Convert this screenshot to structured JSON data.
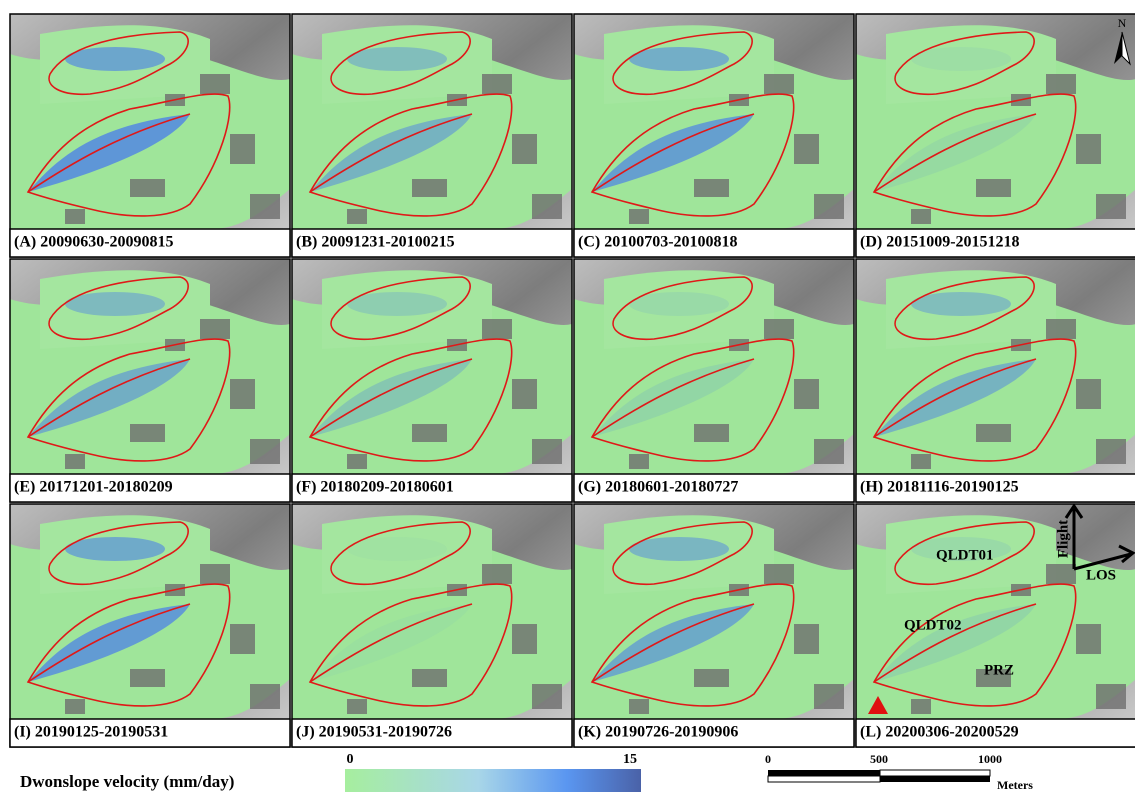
{
  "panels": [
    {
      "label": "(A) 20090630-20090815"
    },
    {
      "label": "(B) 20091231-20100215"
    },
    {
      "label": "(C) 20100703-20100818"
    },
    {
      "label": "(D) 20151009-20151218"
    },
    {
      "label": "(E) 20171201-20180209"
    },
    {
      "label": "(F) 20180209-20180601"
    },
    {
      "label": "(G) 20180601-20180727"
    },
    {
      "label": "(H) 20181116-20190125"
    },
    {
      "label": "(I) 20190125-20190531"
    },
    {
      "label": "(J) 20190531-20190726"
    },
    {
      "label": "(K) 20190726-20190906"
    },
    {
      "label": "(L) 20200306-20200529"
    }
  ],
  "annotations": {
    "north": "N",
    "flight": "Flight",
    "los": "LOS",
    "zone1": "QLDT01",
    "zone2": "QLDT02",
    "zone3": "PRZ"
  },
  "colorbar": {
    "title": "Dwonslope velocity (mm/day)",
    "min": 0,
    "max": 15
  },
  "scalebar": {
    "ticks": [
      0,
      500,
      1000
    ],
    "unit": "Meters"
  }
}
